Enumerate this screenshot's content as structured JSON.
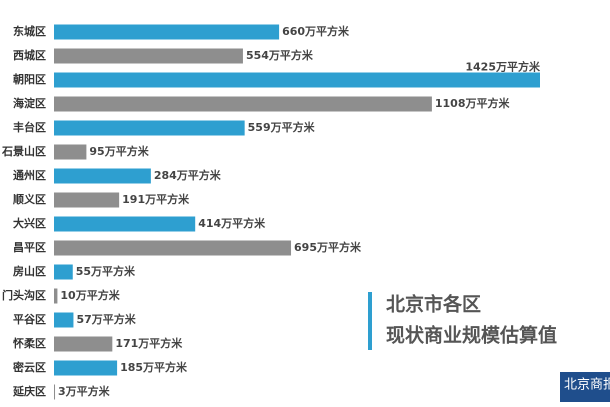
{
  "chart_data": {
    "type": "hbar",
    "title": [
      "北京市各区",
      "现状商业规模估算值"
    ],
    "logo": "北京商报",
    "categories": [
      "东城区",
      "西城区",
      "朝阳区",
      "海淀区",
      "丰台区",
      "石景山区",
      "通州区",
      "顺义区",
      "大兴区",
      "昌平区",
      "房山区",
      "门头沟区",
      "平谷区",
      "怀柔区",
      "密云区",
      "延庆区"
    ],
    "values": [
      660,
      554,
      1425,
      1108,
      559,
      95,
      284,
      191,
      414,
      695,
      55,
      10,
      57,
      171,
      185,
      3
    ],
    "value_labels": [
      "660万平方米",
      "554万平方米",
      "1425万平方米",
      "1108万平方米",
      "559万平方米",
      "95万平方米",
      "284万平方米",
      "191万平方米",
      "414万平方米",
      "695万平方米",
      "55万平方米",
      "10万平方米",
      "57万平方米",
      "171万平方米",
      "185万平方米",
      "3万平方米"
    ],
    "colors": [
      "#2e9fd0",
      "#8e8e8e",
      "#2e9fd0",
      "#8e8e8e",
      "#2e9fd0",
      "#8e8e8e",
      "#2e9fd0",
      "#8e8e8e",
      "#2e9fd0",
      "#8e8e8e",
      "#2e9fd0",
      "#8e8e8e",
      "#2e9fd0",
      "#8e8e8e",
      "#2e9fd0",
      "#8e8e8e"
    ]
  }
}
